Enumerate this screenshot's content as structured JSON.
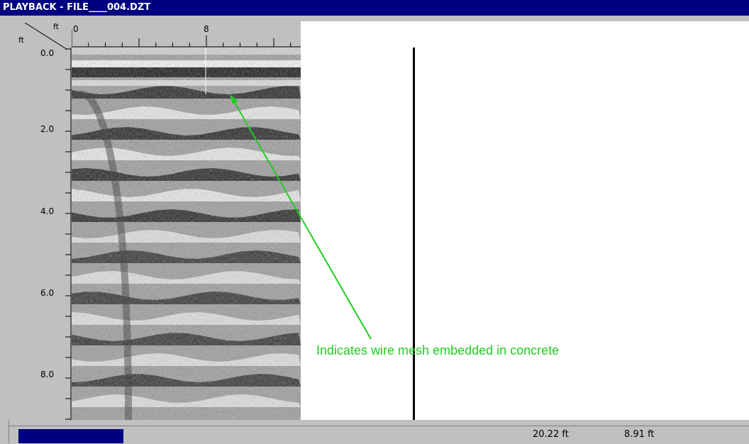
{
  "window": {
    "title": "PLAYBACK - FILE____004.DZT"
  },
  "axes": {
    "x_unit": "ft",
    "y_unit": "ft",
    "x_ticks": [
      "0",
      "8"
    ],
    "y_ticks": [
      "0.0",
      "2.0",
      "4.0",
      "6.0",
      "8.0"
    ]
  },
  "annotation": {
    "text": "Indicates wire mesh embedded in concrete",
    "color": "#22cc22"
  },
  "status": {
    "progress": 0.14,
    "distance": "20.22 ft",
    "depth": "8.91 ft"
  }
}
